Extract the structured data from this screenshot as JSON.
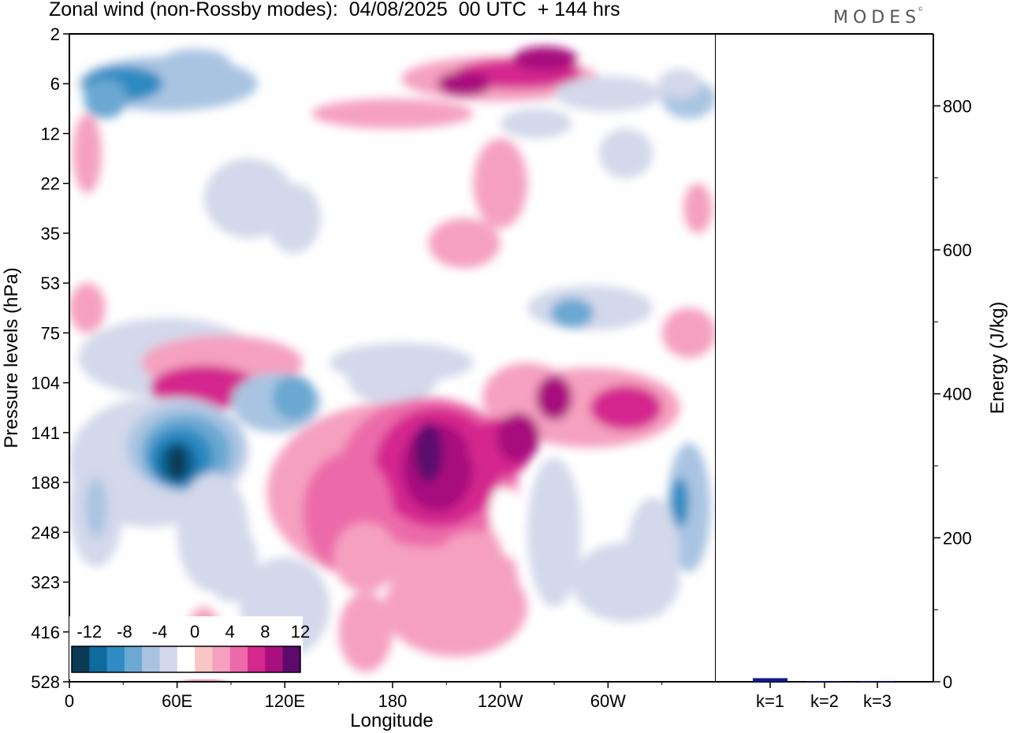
{
  "title": "Zonal wind (non-Rossby modes):  04/08/2025  00 UTC  + 144 hrs",
  "logo": "MODES",
  "colors": {
    "neg": [
      "#0b3b54",
      "#0f6a9e",
      "#2f8bc2",
      "#6ba8d2",
      "#a9c4e2",
      "#d3d8ea"
    ],
    "zero": "#ffffff",
    "pos": [
      "#f8c6c6",
      "#f5a0bf",
      "#ec6aaa",
      "#d4288e",
      "#a8107e",
      "#5c0a6e"
    ],
    "bar": "#131b8c"
  },
  "chart_data": [
    {
      "type": "heatmap",
      "title": "Zonal wind (non-Rossby modes):  04/08/2025  00 UTC  + 144 hrs",
      "xlabel": "Longitude",
      "ylabel": "Pressure levels (hPa)",
      "x_ticks": [
        "0",
        "60E",
        "120E",
        "180",
        "120W",
        "60W"
      ],
      "y_ticks": [
        "2",
        "6",
        "12",
        "22",
        "35",
        "53",
        "75",
        "104",
        "141",
        "188",
        "248",
        "323",
        "416",
        "528"
      ],
      "colorbar": {
        "labels": [
          "-12",
          "-8",
          "-4",
          "0",
          "4",
          "8",
          "12"
        ],
        "levels": [
          -14,
          -12,
          -10,
          -8,
          -6,
          -4,
          -2,
          2,
          4,
          6,
          8,
          10,
          12,
          14
        ]
      },
      "features": [
        {
          "name": "upper negative band (west)",
          "lon_range": [
            5,
            90
          ],
          "level": "4-8 hPa",
          "value": -10
        },
        {
          "name": "upper positive band",
          "lon_range": [
            180,
            300
          ],
          "level": "2-8 hPa",
          "value": 10
        },
        {
          "name": "negative max",
          "lon_range": [
            40,
            80
          ],
          "level": "104-188 hPa",
          "value": -14
        },
        {
          "name": "positive max",
          "lon_range": [
            180,
            250
          ],
          "level": "104-248 hPa",
          "value": 12
        }
      ]
    },
    {
      "type": "bar",
      "categories": [
        "k=1",
        "k=2",
        "k=3"
      ],
      "values": [
        5,
        1,
        0.5
      ],
      "ylabel": "Energy (J/kg)",
      "ylim": [
        0,
        900
      ],
      "y_ticks": [
        "0",
        "200",
        "400",
        "600",
        "800"
      ]
    }
  ]
}
